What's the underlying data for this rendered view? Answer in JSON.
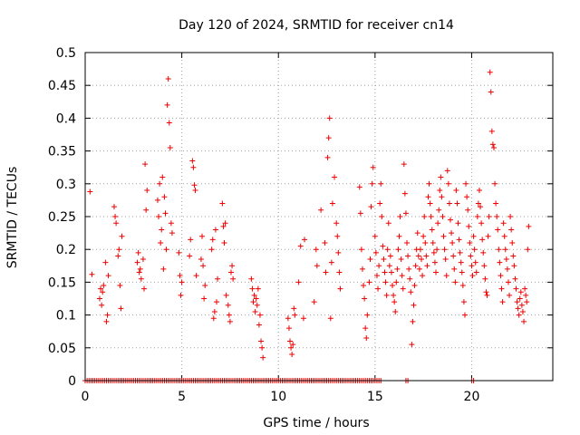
{
  "chart_data": {
    "type": "scatter",
    "title": "Day 120 of 2024, SRMTID for receiver cn14",
    "xlabel": "GPS time / hours",
    "ylabel": "SRMTID / TECUs",
    "xlim": [
      0,
      24.2
    ],
    "ylim": [
      0,
      0.5
    ],
    "x_ticks": [
      0,
      5,
      10,
      15,
      20
    ],
    "x_tick_labels": [
      "0",
      "5",
      "10",
      "15",
      "20"
    ],
    "y_ticks": [
      0,
      0.05,
      0.1,
      0.15,
      0.2,
      0.25,
      0.3,
      0.35,
      0.4,
      0.45,
      0.5
    ],
    "y_tick_labels": [
      "0",
      "0.05",
      "0.1",
      "0.15",
      "0.2",
      "0.25",
      "0.3",
      "0.35",
      "0.4",
      "0.45",
      "0.5"
    ],
    "grid": true,
    "marker": "plus",
    "color": "#ee0000",
    "series": [
      {
        "name": "SRMTID",
        "points": [
          [
            0.25,
            0.288
          ],
          [
            0.35,
            0.162
          ],
          [
            0.75,
            0.125
          ],
          [
            0.8,
            0.14
          ],
          [
            0.85,
            0.115
          ],
          [
            0.9,
            0.135
          ],
          [
            0.95,
            0.145
          ],
          [
            1.05,
            0.18
          ],
          [
            1.1,
            0.09
          ],
          [
            1.15,
            0.1
          ],
          [
            1.2,
            0.16
          ],
          [
            1.5,
            0.265
          ],
          [
            1.55,
            0.25
          ],
          [
            1.6,
            0.24
          ],
          [
            1.7,
            0.19
          ],
          [
            1.75,
            0.2
          ],
          [
            1.8,
            0.145
          ],
          [
            1.85,
            0.11
          ],
          [
            1.9,
            0.22
          ],
          [
            2.7,
            0.18
          ],
          [
            2.75,
            0.195
          ],
          [
            2.8,
            0.165
          ],
          [
            2.85,
            0.17
          ],
          [
            2.9,
            0.155
          ],
          [
            3.0,
            0.185
          ],
          [
            3.05,
            0.14
          ],
          [
            3.1,
            0.33
          ],
          [
            3.15,
            0.26
          ],
          [
            3.2,
            0.29
          ],
          [
            3.75,
            0.275
          ],
          [
            3.8,
            0.25
          ],
          [
            3.85,
            0.3
          ],
          [
            3.9,
            0.21
          ],
          [
            3.95,
            0.23
          ],
          [
            4.0,
            0.31
          ],
          [
            4.05,
            0.17
          ],
          [
            4.1,
            0.28
          ],
          [
            4.15,
            0.255
          ],
          [
            4.2,
            0.2
          ],
          [
            4.25,
            0.42
          ],
          [
            4.3,
            0.46
          ],
          [
            4.35,
            0.393
          ],
          [
            4.4,
            0.355
          ],
          [
            4.45,
            0.24
          ],
          [
            4.5,
            0.225
          ],
          [
            4.85,
            0.195
          ],
          [
            4.9,
            0.16
          ],
          [
            4.95,
            0.13
          ],
          [
            5.0,
            0.15
          ],
          [
            5.4,
            0.19
          ],
          [
            5.45,
            0.215
          ],
          [
            5.55,
            0.335
          ],
          [
            5.6,
            0.325
          ],
          [
            5.65,
            0.298
          ],
          [
            5.7,
            0.29
          ],
          [
            5.75,
            0.16
          ],
          [
            6.0,
            0.185
          ],
          [
            6.05,
            0.22
          ],
          [
            6.1,
            0.175
          ],
          [
            6.15,
            0.125
          ],
          [
            6.2,
            0.145
          ],
          [
            6.55,
            0.2
          ],
          [
            6.6,
            0.215
          ],
          [
            6.65,
            0.095
          ],
          [
            6.7,
            0.105
          ],
          [
            6.75,
            0.23
          ],
          [
            6.8,
            0.12
          ],
          [
            6.85,
            0.155
          ],
          [
            7.1,
            0.27
          ],
          [
            7.15,
            0.235
          ],
          [
            7.2,
            0.21
          ],
          [
            7.25,
            0.24
          ],
          [
            7.3,
            0.13
          ],
          [
            7.4,
            0.115
          ],
          [
            7.45,
            0.1
          ],
          [
            7.5,
            0.09
          ],
          [
            7.55,
            0.165
          ],
          [
            7.6,
            0.175
          ],
          [
            7.65,
            0.155
          ],
          [
            8.6,
            0.155
          ],
          [
            8.65,
            0.14
          ],
          [
            8.7,
            0.12
          ],
          [
            8.75,
            0.13
          ],
          [
            8.8,
            0.105
          ],
          [
            8.85,
            0.125
          ],
          [
            8.9,
            0.115
          ],
          [
            8.95,
            0.14
          ],
          [
            9.0,
            0.085
          ],
          [
            9.05,
            0.1
          ],
          [
            9.1,
            0.06
          ],
          [
            9.15,
            0.05
          ],
          [
            9.2,
            0.035
          ],
          [
            10.5,
            0.095
          ],
          [
            10.55,
            0.08
          ],
          [
            10.6,
            0.06
          ],
          [
            10.65,
            0.05
          ],
          [
            10.7,
            0.04
          ],
          [
            10.75,
            0.055
          ],
          [
            10.8,
            0.11
          ],
          [
            10.85,
            0.1
          ],
          [
            11.05,
            0.15
          ],
          [
            11.15,
            0.205
          ],
          [
            11.3,
            0.095
          ],
          [
            11.35,
            0.215
          ],
          [
            11.85,
            0.12
          ],
          [
            11.95,
            0.2
          ],
          [
            12.0,
            0.175
          ],
          [
            12.2,
            0.26
          ],
          [
            12.4,
            0.21
          ],
          [
            12.45,
            0.165
          ],
          [
            12.55,
            0.34
          ],
          [
            12.6,
            0.37
          ],
          [
            12.65,
            0.4
          ],
          [
            12.7,
            0.095
          ],
          [
            12.75,
            0.18
          ],
          [
            12.8,
            0.27
          ],
          [
            12.9,
            0.31
          ],
          [
            13.0,
            0.24
          ],
          [
            13.05,
            0.22
          ],
          [
            13.1,
            0.195
          ],
          [
            13.15,
            0.165
          ],
          [
            13.2,
            0.14
          ],
          [
            14.2,
            0.295
          ],
          [
            14.25,
            0.255
          ],
          [
            14.3,
            0.2
          ],
          [
            14.35,
            0.17
          ],
          [
            14.4,
            0.145
          ],
          [
            14.45,
            0.125
          ],
          [
            14.5,
            0.08
          ],
          [
            14.55,
            0.065
          ],
          [
            14.6,
            0.1
          ],
          [
            14.7,
            0.15
          ],
          [
            14.75,
            0.185
          ],
          [
            14.8,
            0.265
          ],
          [
            14.85,
            0.3
          ],
          [
            14.9,
            0.325
          ],
          [
            15.0,
            0.22
          ],
          [
            15.05,
            0.195
          ],
          [
            15.1,
            0.16
          ],
          [
            15.15,
            0.14
          ],
          [
            15.2,
            0.175
          ],
          [
            15.25,
            0.27
          ],
          [
            15.3,
            0.3
          ],
          [
            15.35,
            0.25
          ],
          [
            15.4,
            0.205
          ],
          [
            15.45,
            0.185
          ],
          [
            15.5,
            0.165
          ],
          [
            15.55,
            0.15
          ],
          [
            15.6,
            0.13
          ],
          [
            15.65,
            0.2
          ],
          [
            15.7,
            0.24
          ],
          [
            15.75,
            0.175
          ],
          [
            15.8,
            0.19
          ],
          [
            15.85,
            0.165
          ],
          [
            15.9,
            0.145
          ],
          [
            15.95,
            0.13
          ],
          [
            16.0,
            0.12
          ],
          [
            16.05,
            0.105
          ],
          [
            16.1,
            0.15
          ],
          [
            16.15,
            0.17
          ],
          [
            16.2,
            0.2
          ],
          [
            16.25,
            0.22
          ],
          [
            16.3,
            0.25
          ],
          [
            16.35,
            0.185
          ],
          [
            16.4,
            0.16
          ],
          [
            16.45,
            0.14
          ],
          [
            16.5,
            0.33
          ],
          [
            16.55,
            0.285
          ],
          [
            16.6,
            0.255
          ],
          [
            16.65,
            0.21
          ],
          [
            16.7,
            0.19
          ],
          [
            16.75,
            0.17
          ],
          [
            16.8,
            0.155
          ],
          [
            16.85,
            0.135
          ],
          [
            16.9,
            0.055
          ],
          [
            16.95,
            0.09
          ],
          [
            17.0,
            0.115
          ],
          [
            17.05,
            0.145
          ],
          [
            17.1,
            0.175
          ],
          [
            17.15,
            0.2
          ],
          [
            17.2,
            0.225
          ],
          [
            17.25,
            0.19
          ],
          [
            17.3,
            0.17
          ],
          [
            17.35,
            0.2
          ],
          [
            17.4,
            0.185
          ],
          [
            17.45,
            0.16
          ],
          [
            17.5,
            0.22
          ],
          [
            17.55,
            0.25
          ],
          [
            17.6,
            0.21
          ],
          [
            17.65,
            0.19
          ],
          [
            17.7,
            0.175
          ],
          [
            17.75,
            0.28
          ],
          [
            17.8,
            0.3
          ],
          [
            17.85,
            0.27
          ],
          [
            17.9,
            0.25
          ],
          [
            17.95,
            0.23
          ],
          [
            18.0,
            0.21
          ],
          [
            18.05,
            0.195
          ],
          [
            18.1,
            0.18
          ],
          [
            18.15,
            0.165
          ],
          [
            18.2,
            0.2
          ],
          [
            18.25,
            0.24
          ],
          [
            18.3,
            0.26
          ],
          [
            18.35,
            0.29
          ],
          [
            18.4,
            0.31
          ],
          [
            18.45,
            0.28
          ],
          [
            18.5,
            0.25
          ],
          [
            18.55,
            0.22
          ],
          [
            18.6,
            0.2
          ],
          [
            18.65,
            0.185
          ],
          [
            18.7,
            0.16
          ],
          [
            18.75,
            0.32
          ],
          [
            18.8,
            0.3
          ],
          [
            18.85,
            0.27
          ],
          [
            18.9,
            0.245
          ],
          [
            18.95,
            0.225
          ],
          [
            19.0,
            0.21
          ],
          [
            19.05,
            0.19
          ],
          [
            19.1,
            0.17
          ],
          [
            19.15,
            0.15
          ],
          [
            19.2,
            0.29
          ],
          [
            19.25,
            0.27
          ],
          [
            19.3,
            0.24
          ],
          [
            19.35,
            0.215
          ],
          [
            19.4,
            0.195
          ],
          [
            19.45,
            0.18
          ],
          [
            19.5,
            0.165
          ],
          [
            19.55,
            0.145
          ],
          [
            19.6,
            0.12
          ],
          [
            19.65,
            0.1
          ],
          [
            19.7,
            0.3
          ],
          [
            19.75,
            0.28
          ],
          [
            19.8,
            0.26
          ],
          [
            19.85,
            0.235
          ],
          [
            19.9,
            0.21
          ],
          [
            19.95,
            0.19
          ],
          [
            20.0,
            0.175
          ],
          [
            20.05,
            0.16
          ],
          [
            20.1,
            0.22
          ],
          [
            20.15,
            0.2
          ],
          [
            20.2,
            0.18
          ],
          [
            20.25,
            0.165
          ],
          [
            20.3,
            0.25
          ],
          [
            20.35,
            0.27
          ],
          [
            20.4,
            0.29
          ],
          [
            20.45,
            0.265
          ],
          [
            20.5,
            0.24
          ],
          [
            20.55,
            0.215
          ],
          [
            20.6,
            0.195
          ],
          [
            20.65,
            0.175
          ],
          [
            20.7,
            0.155
          ],
          [
            20.75,
            0.135
          ],
          [
            20.8,
            0.13
          ],
          [
            20.85,
            0.22
          ],
          [
            20.9,
            0.25
          ],
          [
            20.95,
            0.47
          ],
          [
            21.0,
            0.44
          ],
          [
            21.05,
            0.38
          ],
          [
            21.1,
            0.36
          ],
          [
            21.15,
            0.355
          ],
          [
            21.2,
            0.3
          ],
          [
            21.25,
            0.27
          ],
          [
            21.3,
            0.25
          ],
          [
            21.35,
            0.23
          ],
          [
            21.4,
            0.2
          ],
          [
            21.45,
            0.18
          ],
          [
            21.5,
            0.16
          ],
          [
            21.55,
            0.14
          ],
          [
            21.6,
            0.12
          ],
          [
            21.65,
            0.24
          ],
          [
            21.7,
            0.22
          ],
          [
            21.75,
            0.2
          ],
          [
            21.8,
            0.185
          ],
          [
            21.85,
            0.17
          ],
          [
            21.9,
            0.15
          ],
          [
            21.95,
            0.13
          ],
          [
            22.0,
            0.25
          ],
          [
            22.05,
            0.23
          ],
          [
            22.1,
            0.21
          ],
          [
            22.15,
            0.19
          ],
          [
            22.2,
            0.175
          ],
          [
            22.25,
            0.155
          ],
          [
            22.3,
            0.14
          ],
          [
            22.35,
            0.12
          ],
          [
            22.4,
            0.11
          ],
          [
            22.45,
            0.1
          ],
          [
            22.5,
            0.125
          ],
          [
            22.55,
            0.135
          ],
          [
            22.6,
            0.115
          ],
          [
            22.65,
            0.105
          ],
          [
            22.7,
            0.09
          ],
          [
            22.75,
            0.14
          ],
          [
            22.8,
            0.13
          ],
          [
            22.85,
            0.12
          ],
          [
            22.9,
            0.2
          ],
          [
            22.95,
            0.235
          ]
        ],
        "zero_band": [
          [
            0.0,
            15.3
          ],
          [
            16.6,
            16.7
          ],
          [
            20.0,
            20.1
          ]
        ]
      }
    ]
  }
}
